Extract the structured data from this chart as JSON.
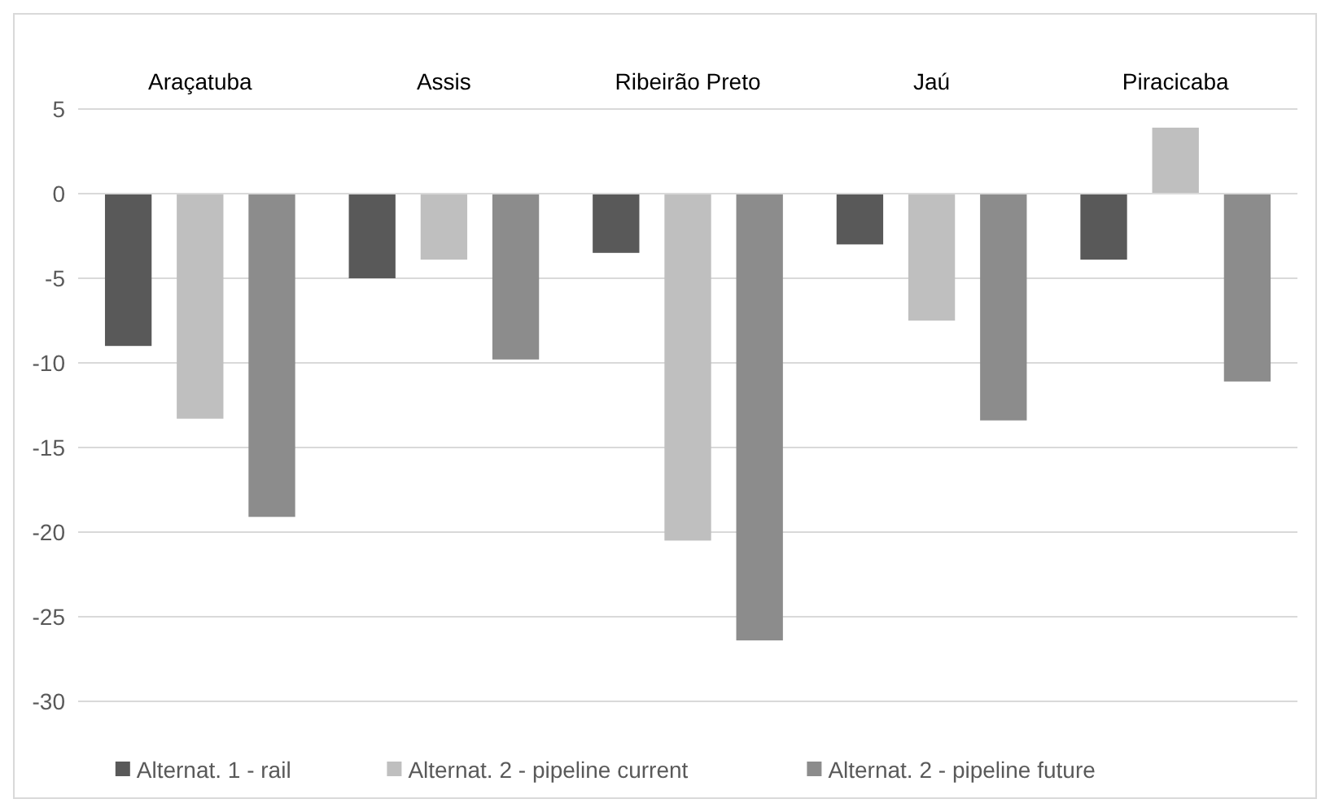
{
  "chart_data": {
    "type": "bar",
    "categories": [
      "Araçatuba",
      "Assis",
      "Ribeirão Preto",
      "Jaú",
      "Piracicaba"
    ],
    "series": [
      {
        "name": "Alternat. 1 - rail",
        "color": "#595959",
        "values": [
          -9.0,
          -5.0,
          -3.5,
          -3.0,
          -3.9
        ]
      },
      {
        "name": "Alternat. 2 - pipeline current",
        "color": "#bfbfbf",
        "values": [
          -13.3,
          -3.9,
          -20.5,
          -7.5,
          3.9
        ]
      },
      {
        "name": "Alternat. 2 - pipeline future",
        "color": "#8c8c8c",
        "values": [
          -19.1,
          -9.8,
          -26.4,
          -13.4,
          -11.1
        ]
      }
    ],
    "ylim": [
      -30,
      5
    ],
    "yticks": [
      -30,
      -25,
      -20,
      -15,
      -10,
      -5,
      0,
      5
    ],
    "grid": "y",
    "legend": "bottom"
  }
}
